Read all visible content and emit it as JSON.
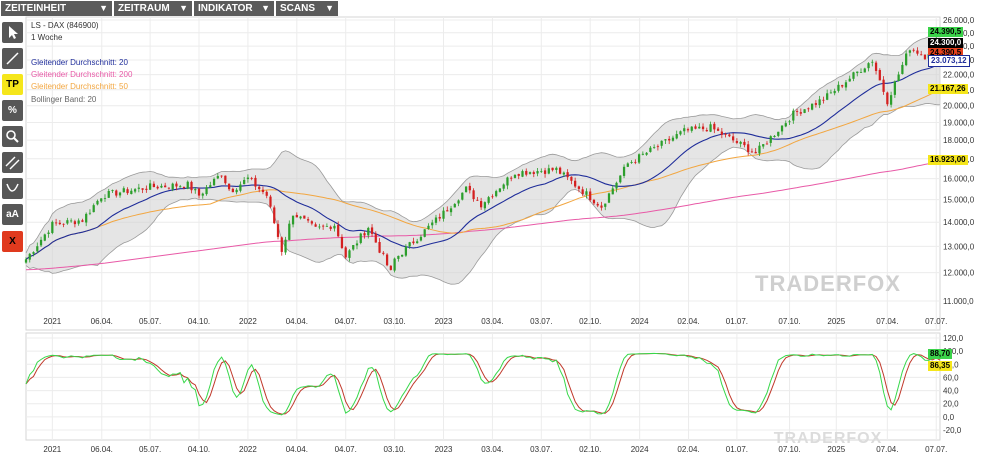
{
  "menu": [
    {
      "label": "ZEITEINHEIT",
      "arrow": "▼"
    },
    {
      "label": "ZEITRAUM",
      "arrow": "▼"
    },
    {
      "label": "INDIKATOR",
      "arrow": "▼"
    },
    {
      "label": "SCANS",
      "arrow": "▼"
    }
  ],
  "toolbar": [
    {
      "name": "select-tool",
      "icon": "cursor-icon",
      "label": ""
    },
    {
      "name": "line-tool",
      "icon": "line-icon",
      "label": ""
    },
    {
      "name": "tp-tool",
      "icon": "tp-icon",
      "label": "TP"
    },
    {
      "name": "percent-tool",
      "icon": "percent-icon",
      "label": "%"
    },
    {
      "name": "zoom-tool",
      "icon": "magnifier-icon",
      "label": ""
    },
    {
      "name": "channel-tool",
      "icon": "parallel-lines-icon",
      "label": ""
    },
    {
      "name": "arc-tool",
      "icon": "arc-icon",
      "label": ""
    },
    {
      "name": "text-tool",
      "icon": "text-icon",
      "label": "aA"
    },
    {
      "name": "delete-tool",
      "icon": "close-icon",
      "label": "X"
    }
  ],
  "legend": {
    "instrument": "LS - DAX (846900)",
    "period": "1 Woche",
    "ma20": "Gleitender Durchschnitt: 20",
    "ma200": "Gleitender Durchschnitt: 200",
    "ma50": "Gleitender Durchschnitt: 50",
    "bb": "Bollinger Band: 20"
  },
  "watermark": "TRADERFOX",
  "colors": {
    "ma20": "#1f2d9a",
    "ma200": "#e85aa7",
    "ma50": "#f2a640",
    "bb_fill": "#d0d0d0",
    "bb_line": "#9a9a9a",
    "up": "#2c9e2c",
    "down": "#d42020",
    "stoch_k": "#37d84a",
    "stoch_d": "#c0392b",
    "tool_active": "#f5e61b",
    "tool_delete": "#e03a1e"
  },
  "price_tags": [
    {
      "value": "24.390,5",
      "bg": "#3bd34a",
      "fg": "#000000"
    },
    {
      "value": "24.300,0",
      "bg": "#000000",
      "fg": "#ffffff"
    },
    {
      "value": "24.390,5",
      "bg": "#e8421f",
      "fg": "#000000"
    },
    {
      "value": "23.073,12",
      "bg": "#ffffff",
      "fg": "#1f2d9a"
    },
    {
      "value": "21.167,26",
      "bg": "#f5e61b",
      "fg": "#000000"
    },
    {
      "value": "16.923,00",
      "bg": "#f5e61b",
      "fg": "#000000"
    }
  ],
  "osc_tags": [
    {
      "value": "88,70",
      "bg": "#3bd34a",
      "fg": "#000000"
    },
    {
      "value": "86,35",
      "bg": "#f5e61b",
      "fg": "#000000"
    }
  ],
  "chart_data": [
    {
      "type": "candlestick",
      "title": "LS - DAX (846900)",
      "ylim": [
        11000,
        26000
      ],
      "y_ticks": [
        "26.000,0",
        "25.000,0",
        "24.000,0",
        "23.000,0",
        "22.000,0",
        "21.000,0",
        "20.000,0",
        "19.000,0",
        "18.000,0",
        "17.000,0",
        "16.000,0",
        "15.000,0",
        "14.000,0",
        "13.000,0",
        "12.000,0",
        "11.000,0"
      ],
      "y_tick_values": [
        26000,
        25000,
        24000,
        23000,
        22000,
        21000,
        20000,
        19000,
        18000,
        17000,
        16000,
        15000,
        14000,
        13000,
        12000,
        11000
      ],
      "log_scale": true,
      "x_ticks": [
        "2021",
        "06.04.",
        "05.07.",
        "04.10.",
        "2022",
        "04.04.",
        "04.07.",
        "03.10.",
        "2023",
        "03.04.",
        "03.07.",
        "02.10.",
        "2024",
        "02.04.",
        "01.07.",
        "07.10.",
        "2025",
        "07.04.",
        "07.07."
      ],
      "close_anchors": [
        {
          "x": "2020-11-16",
          "y": 12500
        },
        {
          "x": "2021-01-04",
          "y": 13900
        },
        {
          "x": "2021-03-01",
          "y": 14100
        },
        {
          "x": "2021-04-06",
          "y": 15200
        },
        {
          "x": "2021-07-05",
          "y": 15600
        },
        {
          "x": "2021-09-13",
          "y": 15700
        },
        {
          "x": "2021-10-04",
          "y": 15200
        },
        {
          "x": "2021-11-15",
          "y": 16250
        },
        {
          "x": "2021-12-01",
          "y": 15400
        },
        {
          "x": "2022-01-03",
          "y": 16000
        },
        {
          "x": "2022-02-07",
          "y": 15200
        },
        {
          "x": "2022-03-07",
          "y": 12850
        },
        {
          "x": "2022-03-28",
          "y": 14400
        },
        {
          "x": "2022-05-09",
          "y": 13700
        },
        {
          "x": "2022-06-13",
          "y": 13900
        },
        {
          "x": "2022-07-04",
          "y": 12600
        },
        {
          "x": "2022-08-15",
          "y": 13800
        },
        {
          "x": "2022-09-26",
          "y": 12000
        },
        {
          "x": "2022-10-03",
          "y": 12500
        },
        {
          "x": "2023-01-02",
          "y": 14400
        },
        {
          "x": "2023-02-13",
          "y": 15500
        },
        {
          "x": "2023-03-13",
          "y": 14800
        },
        {
          "x": "2023-05-15",
          "y": 16300
        },
        {
          "x": "2023-07-31",
          "y": 16450
        },
        {
          "x": "2023-10-23",
          "y": 14700
        },
        {
          "x": "2023-12-11",
          "y": 16750
        },
        {
          "x": "2024-03-25",
          "y": 18500
        },
        {
          "x": "2024-05-13",
          "y": 18700
        },
        {
          "x": "2024-08-05",
          "y": 17300
        },
        {
          "x": "2024-10-14",
          "y": 19500
        },
        {
          "x": "2024-12-09",
          "y": 20400
        },
        {
          "x": "2025-03-10",
          "y": 23000
        },
        {
          "x": "2025-04-07",
          "y": 20300
        },
        {
          "x": "2025-05-19",
          "y": 23900
        },
        {
          "x": "2025-06-16",
          "y": 23300
        },
        {
          "x": "2025-07-07",
          "y": 24300
        }
      ],
      "last_price": 24300,
      "series": [
        {
          "name": "Gleitender Durchschnitt: 20",
          "last": 23073.12
        },
        {
          "name": "Gleitender Durchschnitt: 50",
          "last": 21167.26
        },
        {
          "name": "Gleitender Durchschnitt: 200",
          "last": 16923.0
        },
        {
          "name": "Bollinger Band: 20"
        }
      ]
    },
    {
      "type": "line",
      "ylim": [
        -20,
        120
      ],
      "y_ticks": [
        "120,0",
        "100,0",
        "80,0",
        "60,0",
        "40,0",
        "20,0",
        "0,0",
        "-20,0"
      ],
      "y_tick_values": [
        120,
        100,
        80,
        60,
        40,
        20,
        0,
        -20
      ],
      "x_ticks": [
        "2021",
        "06.04.",
        "05.07.",
        "04.10.",
        "2022",
        "04.04.",
        "04.07.",
        "03.10.",
        "2023",
        "03.04.",
        "03.07.",
        "02.10.",
        "2024",
        "02.04.",
        "01.07.",
        "07.10.",
        "2025",
        "07.04.",
        "07.07."
      ],
      "series": [
        {
          "last": 88.7
        },
        {
          "last": 86.35
        }
      ]
    }
  ]
}
